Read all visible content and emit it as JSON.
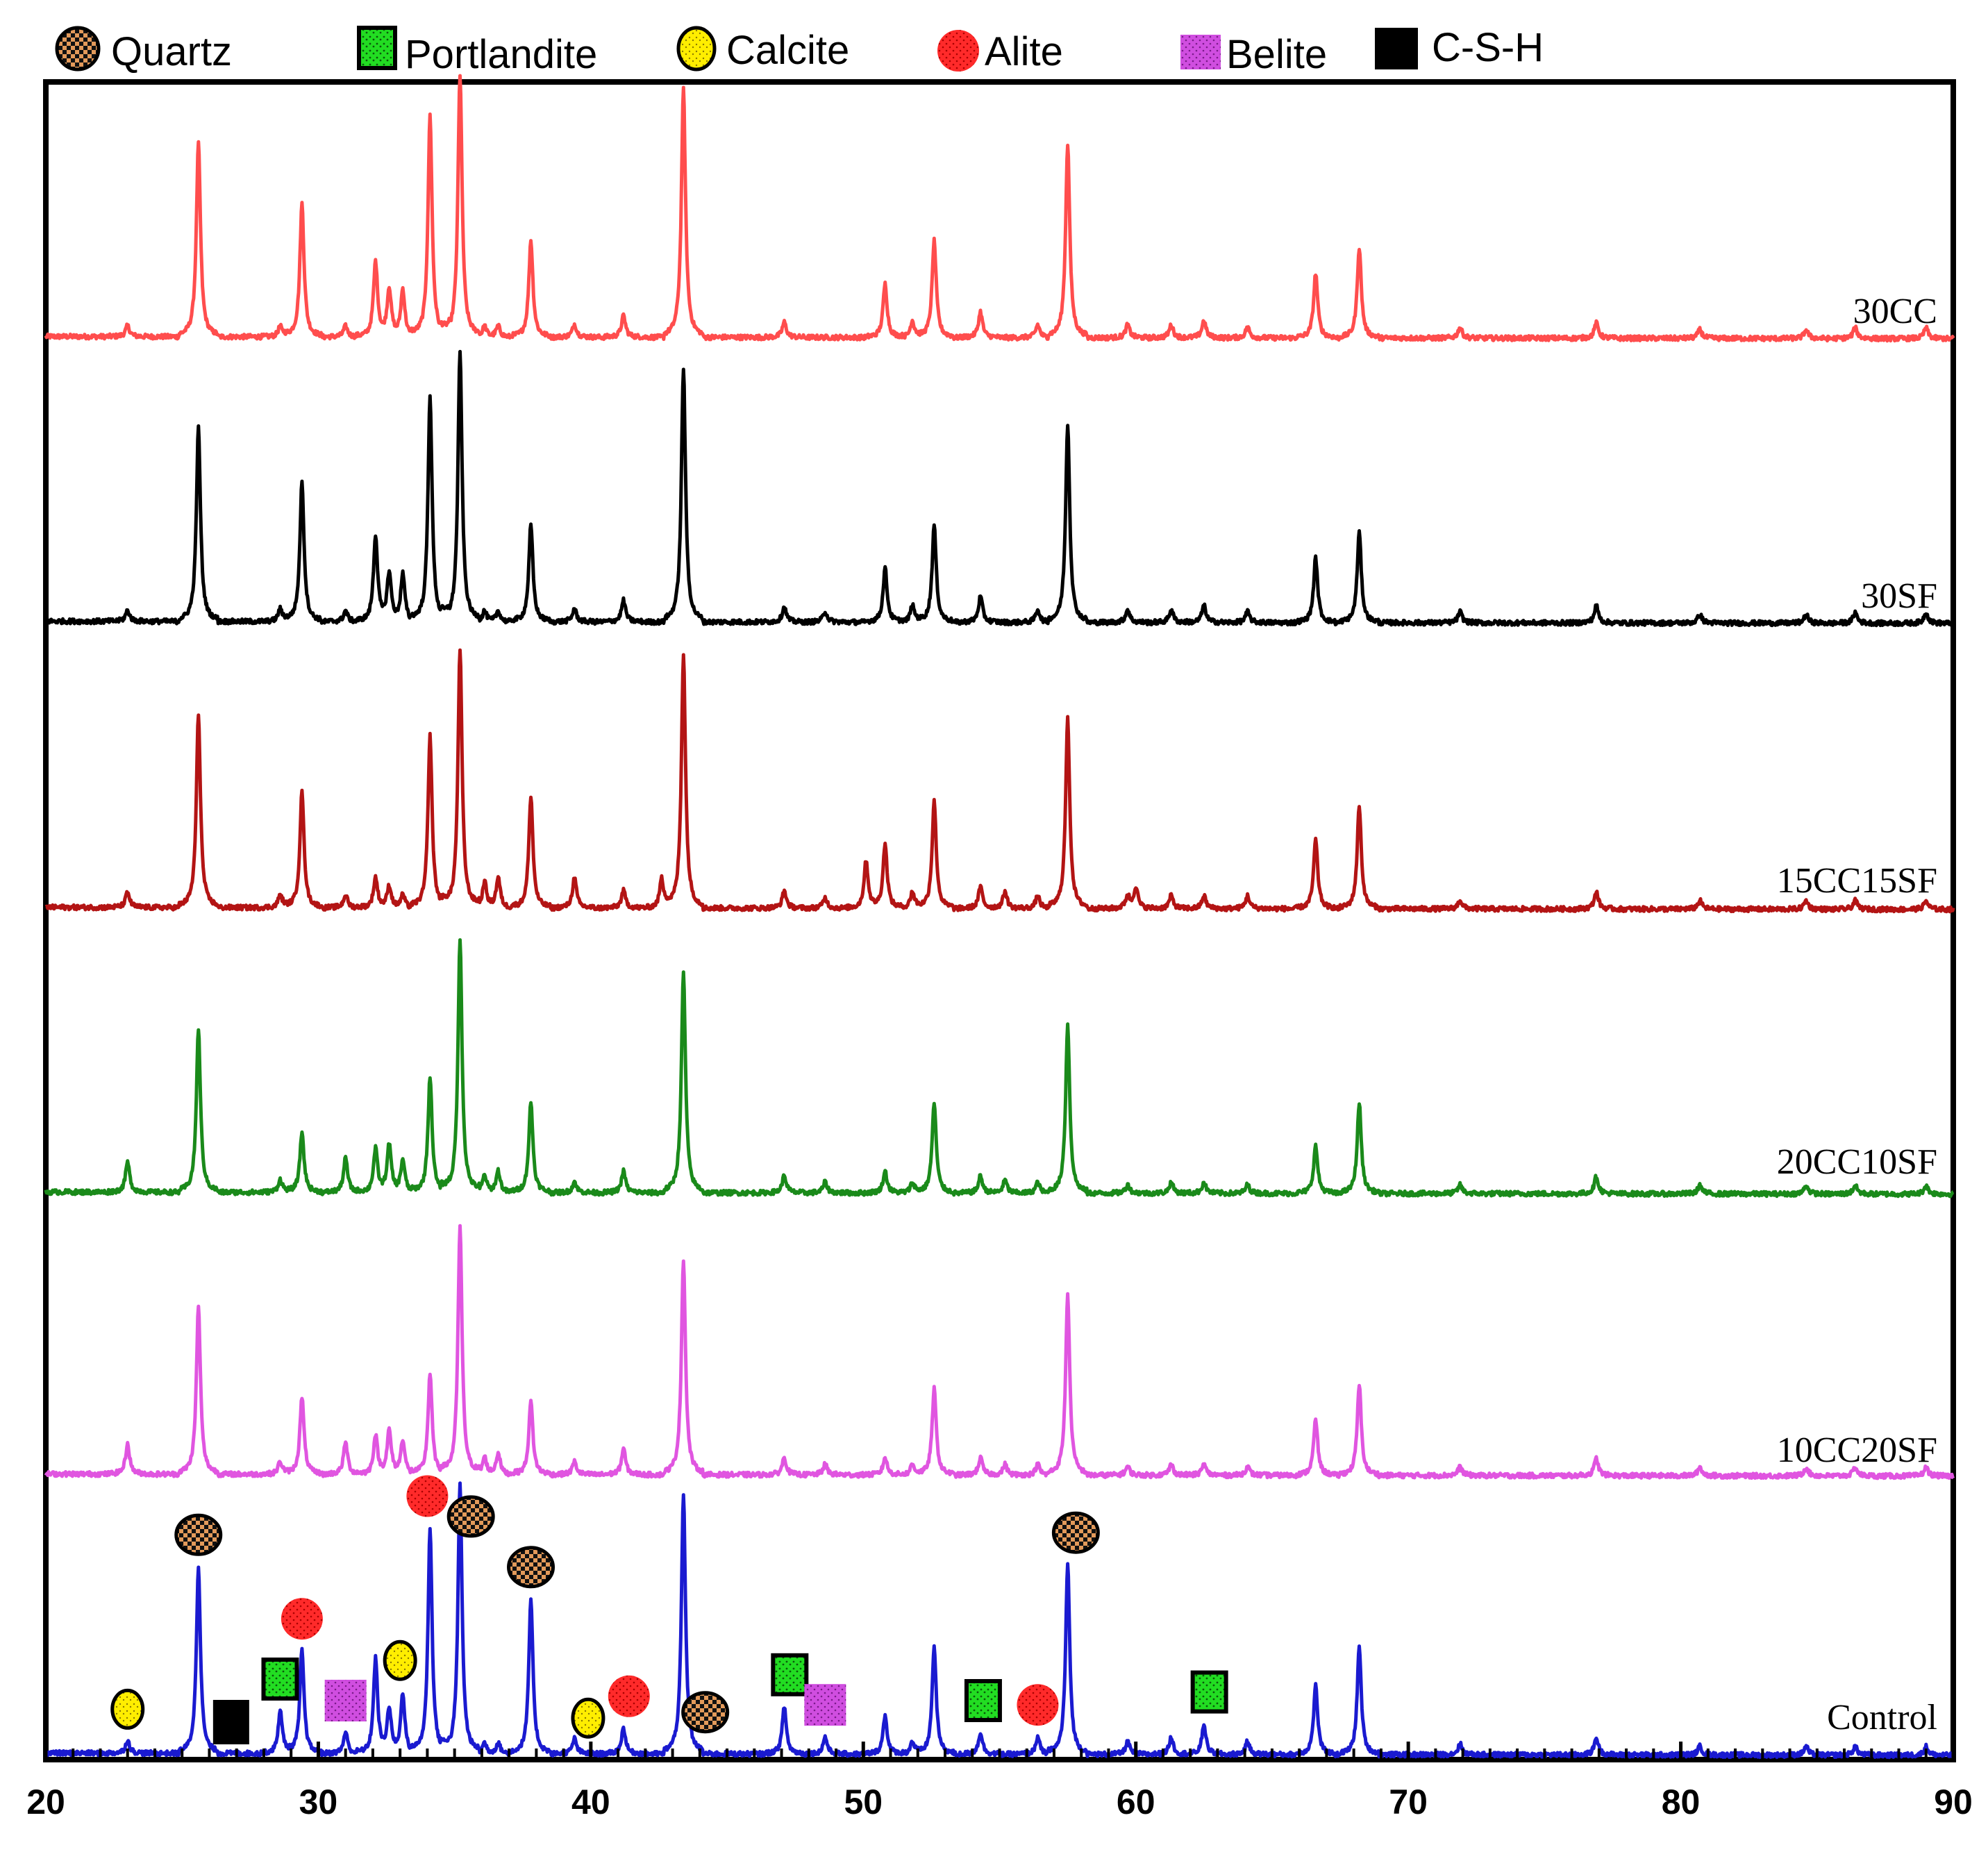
{
  "chart_data": {
    "type": "line",
    "title": "",
    "xlabel": "",
    "ylabel": "",
    "xlim": [
      20,
      90
    ],
    "x_ticks_major": [
      20,
      30,
      40,
      50,
      60,
      70,
      80,
      90
    ],
    "x_tick_labels": [
      "20",
      "30",
      "40",
      "50",
      "60",
      "70",
      "80",
      "90"
    ],
    "y_ticks": false,
    "grid": false,
    "legend_position": "top, outside plot area",
    "legend": [
      {
        "label": "Quartz",
        "marker": "quartz-icon",
        "color": "#d98a4a"
      },
      {
        "label": "Portlandite",
        "marker": "portlandite-icon",
        "color": "#22dd22"
      },
      {
        "label": "Calcite",
        "marker": "calcite-icon",
        "color": "#ffee00"
      },
      {
        "label": "Alite",
        "marker": "alite-icon",
        "color": "#ff2222"
      },
      {
        "label": "Belite",
        "marker": "belite-icon",
        "color": "#cc44dd"
      },
      {
        "label": "C-S-H",
        "marker": "csh-icon",
        "color": "#000000"
      }
    ],
    "peaks_2theta": [
      23.0,
      25.6,
      28.6,
      29.4,
      31.0,
      32.1,
      32.6,
      33.1,
      34.1,
      35.2,
      36.1,
      36.6,
      37.8,
      39.4,
      41.2,
      42.6,
      43.4,
      47.1,
      48.6,
      50.1,
      50.8,
      51.8,
      52.6,
      54.3,
      55.2,
      56.4,
      57.5,
      59.7,
      60.0,
      61.3,
      62.5,
      64.1,
      66.6,
      68.2,
      71.9,
      76.9,
      80.7,
      84.6,
      86.4,
      89.0
    ],
    "series": [
      {
        "name": "30CC",
        "color": "#ff4d4d",
        "baseline": 0.0,
        "peak_heights": [
          5,
          90,
          5,
          62,
          5,
          35,
          22,
          22,
          103,
          122,
          5,
          5,
          45,
          6,
          10,
          0,
          115,
          7,
          0,
          0,
          25,
          8,
          45,
          12,
          0,
          6,
          90,
          6,
          0,
          6,
          8,
          5,
          30,
          42,
          5,
          7,
          4,
          4,
          5,
          5
        ]
      },
      {
        "name": "30SF",
        "color": "#000000",
        "baseline": 0.0,
        "peak_heights": [
          5,
          90,
          6,
          65,
          5,
          40,
          22,
          22,
          105,
          125,
          5,
          5,
          45,
          6,
          10,
          0,
          118,
          7,
          5,
          0,
          25,
          8,
          45,
          12,
          0,
          6,
          92,
          6,
          0,
          6,
          8,
          5,
          30,
          42,
          5,
          8,
          4,
          4,
          5,
          5
        ]
      },
      {
        "name": "15CC15SF",
        "color": "#b31414",
        "baseline": 0.0,
        "peak_heights": [
          7,
          90,
          6,
          54,
          6,
          14,
          10,
          6,
          80,
          120,
          12,
          14,
          52,
          14,
          8,
          14,
          118,
          8,
          5,
          22,
          30,
          8,
          50,
          10,
          8,
          6,
          88,
          6,
          10,
          6,
          6,
          6,
          32,
          48,
          4,
          8,
          4,
          4,
          4,
          4
        ]
      },
      {
        "name": "20CC10SF",
        "color": "#1a8a1a",
        "baseline": 0.0,
        "peak_heights": [
          14,
          76,
          6,
          28,
          16,
          20,
          22,
          15,
          54,
          117,
          8,
          10,
          42,
          5,
          10,
          0,
          102,
          8,
          5,
          0,
          10,
          5,
          42,
          8,
          6,
          5,
          78,
          4,
          0,
          5,
          5,
          4,
          22,
          42,
          4,
          8,
          4,
          4,
          4,
          4
        ]
      },
      {
        "name": "10CC20SF",
        "color": "#e055e0",
        "baseline": 0.0,
        "peak_heights": [
          14,
          78,
          6,
          36,
          15,
          18,
          20,
          16,
          47,
          115,
          8,
          10,
          34,
          6,
          12,
          0,
          100,
          8,
          5,
          0,
          8,
          5,
          40,
          8,
          5,
          5,
          84,
          4,
          0,
          5,
          5,
          4,
          26,
          42,
          4,
          8,
          4,
          4,
          4,
          4
        ]
      },
      {
        "name": "Control",
        "color": "#1a1ad0",
        "baseline": 0.0,
        "peak_heights": [
          6,
          87,
          20,
          48,
          10,
          44,
          20,
          28,
          105,
          125,
          5,
          5,
          72,
          7,
          12,
          0,
          120,
          22,
          8,
          0,
          18,
          6,
          50,
          10,
          0,
          8,
          88,
          6,
          0,
          8,
          14,
          6,
          32,
          50,
          5,
          8,
          4,
          4,
          4,
          4
        ]
      }
    ],
    "phase_markers": [
      {
        "phase": "Calcite",
        "two_theta": 23.0
      },
      {
        "phase": "Quartz",
        "two_theta": 25.6
      },
      {
        "phase": "C-S-H",
        "two_theta": 26.8
      },
      {
        "phase": "Portlandite",
        "two_theta": 28.6
      },
      {
        "phase": "Alite",
        "two_theta": 29.4
      },
      {
        "phase": "Belite",
        "two_theta": 31.0
      },
      {
        "phase": "Calcite",
        "two_theta": 33.0
      },
      {
        "phase": "Alite",
        "two_theta": 34.0
      },
      {
        "phase": "Quartz",
        "two_theta": 35.6
      },
      {
        "phase": "Quartz",
        "two_theta": 37.8
      },
      {
        "phase": "Calcite",
        "two_theta": 39.9
      },
      {
        "phase": "Alite",
        "two_theta": 41.4
      },
      {
        "phase": "Quartz",
        "two_theta": 44.2
      },
      {
        "phase": "Portlandite",
        "two_theta": 47.3
      },
      {
        "phase": "Belite",
        "two_theta": 48.6
      },
      {
        "phase": "Portlandite",
        "two_theta": 54.4
      },
      {
        "phase": "Alite",
        "two_theta": 56.4
      },
      {
        "phase": "Quartz",
        "two_theta": 57.8
      },
      {
        "phase": "Portlandite",
        "two_theta": 62.7
      }
    ]
  }
}
